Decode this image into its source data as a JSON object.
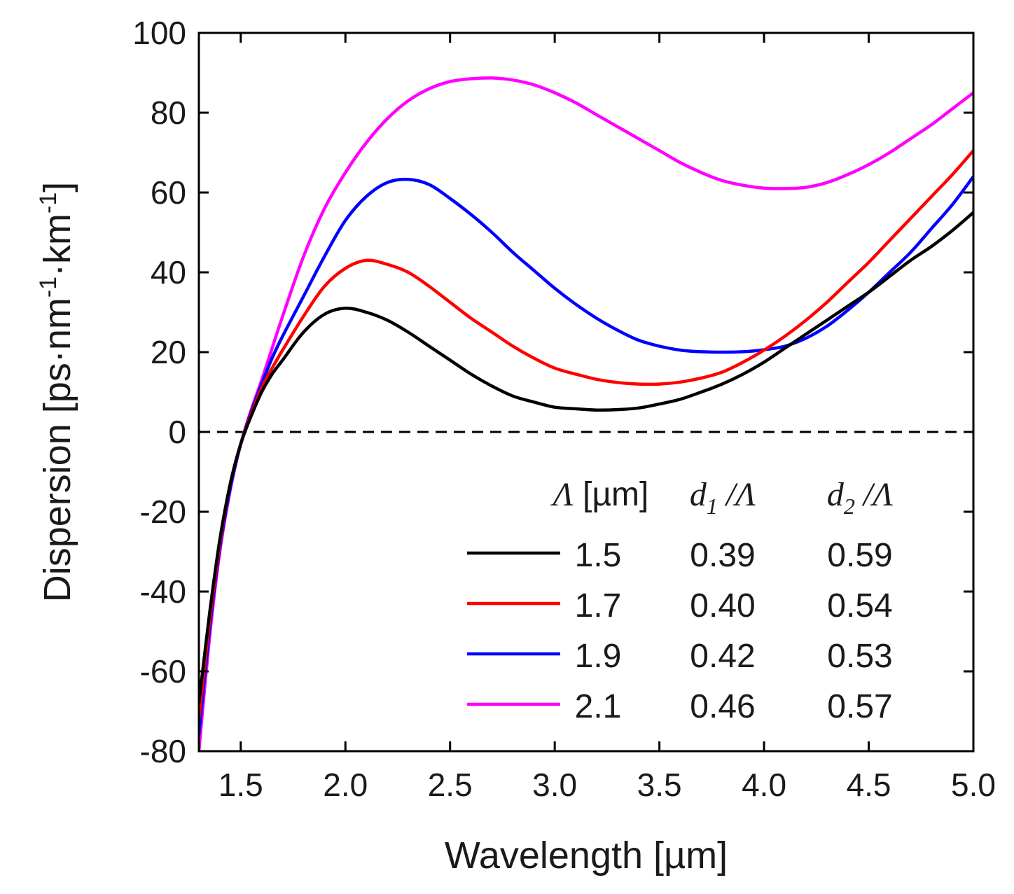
{
  "chart_data": {
    "type": "line",
    "title": "",
    "xlabel": "Wavelength [µm]",
    "ylabel_parts": {
      "prefix": "Dispersion [ps·nm",
      "exp1": "-1",
      "mid": "·km",
      "exp2": "-1",
      "suffix": "]"
    },
    "xlim": [
      1.3,
      5.0
    ],
    "ylim": [
      -80,
      100
    ],
    "x_ticks": [
      1.5,
      2.0,
      2.5,
      3.0,
      3.5,
      4.0,
      4.5,
      5.0
    ],
    "x_tick_labels": [
      "1.5",
      "2.0",
      "2.5",
      "3.0",
      "3.5",
      "4.0",
      "4.5",
      "5.0"
    ],
    "y_ticks": [
      -80,
      -60,
      -40,
      -20,
      0,
      20,
      40,
      60,
      80,
      100
    ],
    "y_tick_labels": [
      "-80",
      "-60",
      "-40",
      "-20",
      "0",
      "20",
      "40",
      "60",
      "80",
      "100"
    ],
    "reference_line": {
      "y": 0,
      "style": "dashed",
      "color": "#000000"
    },
    "legend": {
      "placement": "bottom-right",
      "header": {
        "col1_symbol": "Λ",
        "col1_unit": " [µm]",
        "col2_var": "d",
        "col2_sub": "1",
        "col2_den": " /Λ",
        "col3_var": "d",
        "col3_sub": "2",
        "col3_den": " /Λ"
      }
    },
    "series": [
      {
        "name": "Λ = 1.5 µm",
        "lambda": "1.5",
        "d1": "0.39",
        "d2": "0.59",
        "color": "#000000",
        "x": [
          1.3,
          1.35,
          1.4,
          1.45,
          1.5,
          1.55,
          1.6,
          1.65,
          1.7,
          1.8,
          1.9,
          2.0,
          2.1,
          2.2,
          2.3,
          2.4,
          2.5,
          2.6,
          2.7,
          2.8,
          2.9,
          3.0,
          3.1,
          3.2,
          3.3,
          3.4,
          3.5,
          3.6,
          3.7,
          3.8,
          3.9,
          4.0,
          4.1,
          4.2,
          4.3,
          4.4,
          4.5,
          4.6,
          4.7,
          4.8,
          4.9,
          5.0
        ],
        "y": [
          -68,
          -46,
          -27,
          -13,
          -3,
          4,
          10,
          14.5,
          18,
          25,
          29.5,
          31,
          30,
          28,
          25,
          21.5,
          18,
          14.5,
          11.5,
          9,
          7.5,
          6.2,
          5.8,
          5.5,
          5.6,
          6,
          7,
          8.2,
          10,
          12,
          14.5,
          17.5,
          21,
          24.5,
          28,
          31.5,
          35,
          39,
          43,
          46.5,
          50.5,
          55
        ]
      },
      {
        "name": "Λ = 1.7 µm",
        "lambda": "1.7",
        "d1": "0.40",
        "d2": "0.54",
        "color": "#ff0000",
        "x": [
          1.3,
          1.35,
          1.4,
          1.45,
          1.5,
          1.55,
          1.6,
          1.65,
          1.7,
          1.8,
          1.9,
          2.0,
          2.1,
          2.2,
          2.3,
          2.4,
          2.5,
          2.6,
          2.7,
          2.8,
          2.9,
          3.0,
          3.1,
          3.2,
          3.3,
          3.4,
          3.5,
          3.6,
          3.7,
          3.8,
          3.9,
          4.0,
          4.1,
          4.2,
          4.3,
          4.4,
          4.5,
          4.6,
          4.7,
          4.8,
          4.9,
          5.0
        ],
        "y": [
          -72,
          -48,
          -28,
          -13,
          -3,
          4.5,
          11,
          16,
          20.5,
          29,
          36.5,
          41,
          43,
          42,
          40,
          36.5,
          32.5,
          28.5,
          25,
          21.5,
          18.5,
          16,
          14.5,
          13.2,
          12.4,
          12,
          12,
          12.5,
          13.5,
          15,
          17.5,
          20.5,
          24,
          28,
          32.5,
          37.5,
          42.5,
          48,
          53.5,
          59,
          64.5,
          70.5
        ]
      },
      {
        "name": "Λ = 1.9 µm",
        "lambda": "1.9",
        "d1": "0.42",
        "d2": "0.53",
        "color": "#0000ff",
        "x": [
          1.3,
          1.35,
          1.4,
          1.45,
          1.5,
          1.55,
          1.6,
          1.65,
          1.7,
          1.8,
          1.9,
          2.0,
          2.1,
          2.2,
          2.3,
          2.4,
          2.5,
          2.6,
          2.7,
          2.8,
          2.9,
          3.0,
          3.1,
          3.2,
          3.3,
          3.4,
          3.5,
          3.6,
          3.7,
          3.8,
          3.9,
          4.0,
          4.1,
          4.2,
          4.3,
          4.4,
          4.5,
          4.6,
          4.7,
          4.8,
          4.9,
          5.0
        ],
        "y": [
          -76,
          -50,
          -29,
          -14,
          -3,
          5,
          12,
          18.5,
          24,
          34,
          44,
          53,
          59,
          62.5,
          63.3,
          62,
          58.5,
          54.5,
          50,
          45,
          40.5,
          36,
          32,
          28.5,
          25.5,
          23,
          21.5,
          20.5,
          20.1,
          20,
          20.1,
          20.6,
          21.5,
          23.5,
          26.5,
          30.5,
          35,
          40,
          45,
          51,
          57,
          64
        ]
      },
      {
        "name": "Λ = 2.1 µm",
        "lambda": "2.1",
        "d1": "0.46",
        "d2": "0.57",
        "color": "#ff00ff",
        "x": [
          1.3,
          1.35,
          1.4,
          1.45,
          1.5,
          1.55,
          1.6,
          1.65,
          1.7,
          1.8,
          1.9,
          2.0,
          2.1,
          2.2,
          2.3,
          2.4,
          2.5,
          2.6,
          2.7,
          2.8,
          2.9,
          3.0,
          3.1,
          3.2,
          3.3,
          3.4,
          3.5,
          3.6,
          3.7,
          3.8,
          3.9,
          4.0,
          4.1,
          4.2,
          4.3,
          4.4,
          4.5,
          4.6,
          4.7,
          4.8,
          4.9,
          5.0
        ],
        "y": [
          -80,
          -52,
          -30,
          -14.5,
          -3,
          5.5,
          13,
          21,
          29,
          44,
          56,
          65,
          72.5,
          78.5,
          83,
          86,
          87.8,
          88.5,
          88.7,
          88.2,
          87,
          85,
          82.5,
          79.5,
          76.5,
          73.5,
          70.5,
          67.5,
          65,
          63,
          61.8,
          61.1,
          61,
          61.3,
          62.5,
          64.5,
          67,
          70,
          73.5,
          77,
          81,
          85
        ]
      }
    ]
  }
}
